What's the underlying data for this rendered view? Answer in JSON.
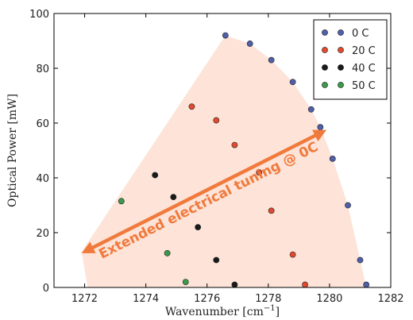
{
  "chart_data": {
    "type": "scatter",
    "xlabel": "Wavenumber [cm",
    "xlabel_sup": "−1",
    "xlabel_end": "]",
    "ylabel": "Optical Power [mW]",
    "xlim": [
      1271,
      1282
    ],
    "ylim": [
      0,
      100
    ],
    "xticks": [
      1272,
      1274,
      1276,
      1278,
      1280,
      1282
    ],
    "yticks": [
      0,
      20,
      40,
      60,
      80,
      100
    ],
    "grid": false,
    "legend_position": "top-right",
    "series": [
      {
        "name": "0 C",
        "color": "#4f5fa8",
        "points": [
          [
            1276.6,
            92
          ],
          [
            1277.4,
            89
          ],
          [
            1278.1,
            83
          ],
          [
            1278.8,
            75
          ],
          [
            1279.4,
            65
          ],
          [
            1279.7,
            58.5
          ],
          [
            1280.1,
            47
          ],
          [
            1280.6,
            30
          ],
          [
            1281.0,
            10
          ],
          [
            1281.2,
            1
          ]
        ]
      },
      {
        "name": "20 C",
        "color": "#e04a2e",
        "points": [
          [
            1275.5,
            66
          ],
          [
            1276.3,
            61
          ],
          [
            1276.9,
            52
          ],
          [
            1277.7,
            42
          ],
          [
            1278.1,
            28
          ],
          [
            1278.8,
            12
          ],
          [
            1279.2,
            1
          ]
        ]
      },
      {
        "name": "40 C",
        "color": "#1a1a1a",
        "points": [
          [
            1274.3,
            41
          ],
          [
            1274.9,
            33
          ],
          [
            1275.7,
            22
          ],
          [
            1276.3,
            10
          ],
          [
            1276.9,
            1
          ]
        ]
      },
      {
        "name": "50 C",
        "color": "#3a9a4a",
        "points": [
          [
            1273.2,
            31.5
          ],
          [
            1274.7,
            12.5
          ],
          [
            1275.3,
            2
          ]
        ]
      }
    ],
    "region": {
      "color": "#fde3d8",
      "polygon": [
        [
          1272.1,
          0
        ],
        [
          1271.9,
          13
        ],
        [
          1276.6,
          92
        ],
        [
          1277.4,
          89
        ],
        [
          1278.1,
          83
        ],
        [
          1278.8,
          75
        ],
        [
          1279.4,
          65
        ],
        [
          1279.7,
          58.5
        ],
        [
          1280.1,
          47
        ],
        [
          1280.6,
          30
        ],
        [
          1281.0,
          10
        ],
        [
          1281.2,
          0
        ]
      ]
    },
    "annotation": {
      "text": "Extended electrical tuning @ 0C",
      "color": "#f07a3c",
      "arrow_from": [
        1271.9,
        12.5
      ],
      "arrow_to": [
        1279.9,
        57.5
      ]
    }
  }
}
